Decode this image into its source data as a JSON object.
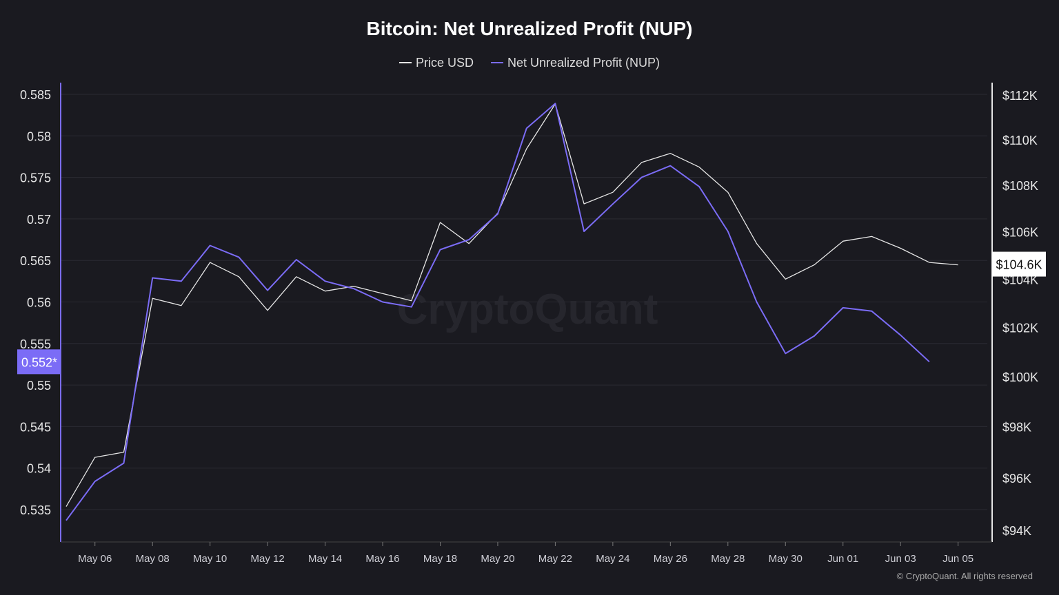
{
  "chart_data": {
    "type": "line",
    "title": "Bitcoin: Net Unrealized Profit (NUP)",
    "watermark": "CryptoQuant",
    "footer": "© CryptoQuant. All rights reserved",
    "x": [
      "May 05",
      "May 06",
      "May 07",
      "May 08",
      "May 09",
      "May 10",
      "May 11",
      "May 12",
      "May 13",
      "May 14",
      "May 15",
      "May 16",
      "May 17",
      "May 18",
      "May 19",
      "May 20",
      "May 21",
      "May 22",
      "May 23",
      "May 24",
      "May 25",
      "May 26",
      "May 27",
      "May 28",
      "May 29",
      "May 30",
      "May 31",
      "Jun 01",
      "Jun 02",
      "Jun 03",
      "Jun 04",
      "Jun 05"
    ],
    "x_tick_labels": [
      "May 06",
      "May 08",
      "May 10",
      "May 12",
      "May 14",
      "May 16",
      "May 18",
      "May 20",
      "May 22",
      "May 24",
      "May 26",
      "May 28",
      "May 30",
      "Jun 01",
      "Jun 03",
      "Jun 05"
    ],
    "left_axis": {
      "ticks": [
        "0.585",
        "0.58",
        "0.575",
        "0.57",
        "0.565",
        "0.56",
        "0.555",
        "0.55",
        "0.545",
        "0.54",
        "0.535"
      ],
      "ylim": [
        0.5325,
        0.5865
      ],
      "current_label": "0.552*"
    },
    "right_axis": {
      "scale": "log",
      "ticks": [
        "$112K",
        "$110K",
        "$108K",
        "$106K",
        "$104K",
        "$102K",
        "$100K",
        "$98K",
        "$96K",
        "$94K"
      ],
      "tick_values": [
        112,
        110,
        108,
        106,
        104,
        102,
        100,
        98,
        96,
        94
      ],
      "ylim": [
        93.5,
        112.5
      ],
      "current_label": "$104.6K"
    },
    "grid": true,
    "legend_position": "top",
    "series": [
      {
        "name": "Price USD",
        "axis": "right",
        "unit": "K USD",
        "color": "#e6e6e6",
        "values": [
          94.9,
          96.8,
          97.0,
          103.2,
          102.9,
          104.7,
          104.1,
          102.7,
          104.1,
          103.5,
          103.7,
          103.4,
          103.1,
          106.4,
          105.5,
          106.8,
          109.6,
          111.6,
          107.2,
          107.7,
          109.0,
          109.4,
          108.8,
          107.7,
          105.5,
          104.0,
          104.6,
          105.6,
          105.8,
          105.3,
          104.7,
          104.6
        ]
      },
      {
        "name": "Net Unrealized Profit (NUP)",
        "axis": "left",
        "color": "#7b6cf6",
        "values": [
          0.5337,
          0.5384,
          0.5406,
          0.5629,
          0.5625,
          0.5668,
          0.5654,
          0.5614,
          0.5651,
          0.5625,
          0.5616,
          0.56,
          0.5594,
          0.5663,
          0.5675,
          0.5706,
          0.5809,
          0.5839,
          0.5685,
          0.5718,
          0.575,
          0.5764,
          0.5739,
          0.5685,
          0.56,
          0.5538,
          0.5559,
          0.5593,
          0.5589,
          0.556,
          0.5528,
          null
        ]
      }
    ]
  }
}
